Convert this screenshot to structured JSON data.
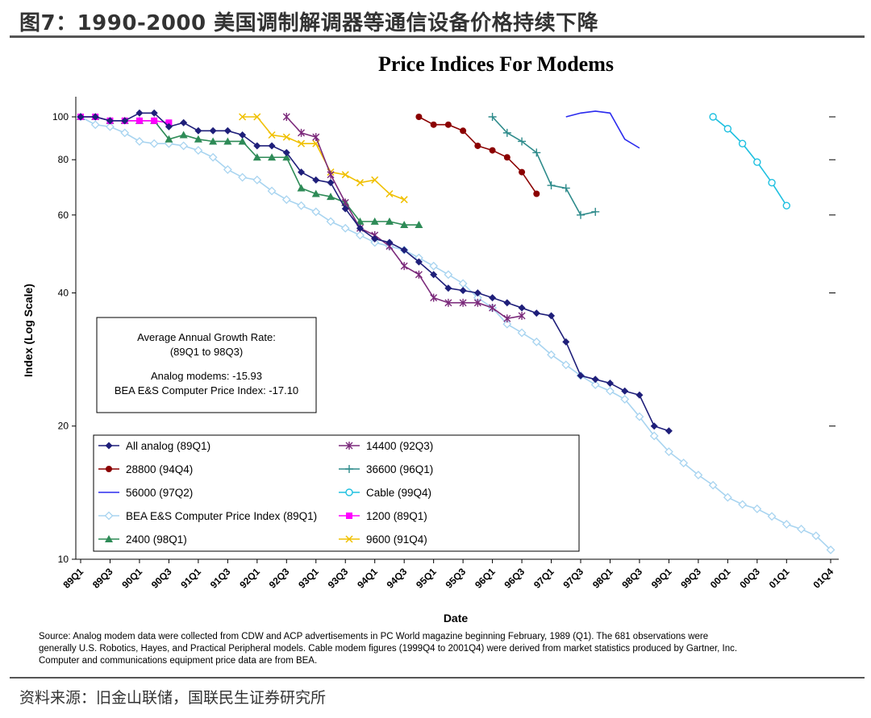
{
  "figure_title": "图7：1990-2000 美国调制解调器等通信设备价格持续下降",
  "footer_source": "资料来源：旧金山联储，国联民生证券研究所",
  "source_note": [
    "Source: Analog modem data were collected from CDW and ACP advertisements in PC World magazine beginning February, 1989 (Q1).  The 681 observations were",
    "generally U.S. Robotics, Hayes, and Practical Peripheral models.  Cable modem figures (1999Q4 to 2001Q4) were derived from market statistics produced by Gartner, Inc.",
    "Computer and communications equipment price data are from BEA."
  ],
  "growth_box": {
    "line1": "Average Annual Growth Rate:",
    "line2": "(89Q1 to 98Q3)",
    "line3": "Analog modems:  -15.93",
    "line4": "BEA E&S Computer Price Index:  -17.10"
  },
  "chart_data": {
    "type": "line",
    "title": "Price Indices For Modems",
    "xlabel": "Date",
    "ylabel": "Index (Log Scale)",
    "y_scale": "log",
    "ylim": [
      10,
      107
    ],
    "y_ticks": [
      10,
      20,
      40,
      60,
      80,
      100
    ],
    "x_ticks": [
      "89Q1",
      "89Q3",
      "90Q1",
      "90Q3",
      "91Q1",
      "91Q3",
      "92Q1",
      "92Q3",
      "93Q1",
      "93Q3",
      "94Q1",
      "94Q3",
      "95Q1",
      "95Q3",
      "96Q1",
      "96Q3",
      "97Q1",
      "97Q3",
      "98Q1",
      "98Q3",
      "99Q1",
      "99Q3",
      "00Q1",
      "00Q3",
      "01Q1",
      "01Q4"
    ],
    "x_tick_index": [
      0,
      2,
      4,
      6,
      8,
      10,
      12,
      14,
      16,
      18,
      20,
      22,
      24,
      26,
      28,
      30,
      32,
      34,
      36,
      38,
      40,
      42,
      44,
      46,
      48,
      51
    ],
    "x_count": 52,
    "series": [
      {
        "name": "All analog (89Q1)",
        "color": "#1f1f7a",
        "marker": "diamond",
        "start": 0,
        "values": [
          100,
          100,
          98,
          98,
          102,
          102,
          95,
          97,
          93,
          93,
          93,
          91,
          86,
          86,
          83,
          75,
          72,
          71,
          62,
          56,
          53,
          52,
          50,
          47,
          44,
          41,
          40.5,
          40,
          39,
          38,
          37,
          36,
          35.5,
          31,
          26,
          25.5,
          25,
          24,
          23.5,
          20,
          19.5
        ]
      },
      {
        "name": "14400 (92Q3)",
        "color": "#7b2a7b",
        "marker": "star",
        "start": 14,
        "values": [
          100,
          92,
          90,
          74,
          64,
          56,
          54,
          51,
          46,
          44,
          39,
          38,
          38,
          38,
          37,
          35,
          35.5
        ]
      },
      {
        "name": "28800 (94Q4)",
        "color": "#8b0000",
        "marker": "circle",
        "start": 23,
        "values": [
          100,
          96,
          96,
          93,
          86,
          84,
          81,
          75,
          67
        ]
      },
      {
        "name": "36600 (96Q1)",
        "color": "#2e8b8b",
        "marker": "plus",
        "start": 28,
        "values": [
          100,
          92,
          88,
          83,
          70,
          69,
          60,
          61
        ]
      },
      {
        "name": "56000 (97Q2)",
        "color": "#2a2aee",
        "marker": "none",
        "start": 33,
        "values": [
          100,
          102,
          103,
          102,
          89,
          85
        ]
      },
      {
        "name": "Cable (99Q4)",
        "color": "#1fc0e0",
        "marker": "circle-open",
        "start": 43,
        "values": [
          100,
          94,
          87,
          79,
          71,
          63
        ]
      },
      {
        "name": "BEA E&S Computer Price Index (89Q1)",
        "color": "#a8d4f0",
        "marker": "diamond-open",
        "start": 0,
        "values": [
          100,
          96,
          95,
          92,
          88,
          87,
          87,
          86,
          84,
          81,
          76,
          73,
          72,
          68,
          65,
          63,
          61,
          58,
          56,
          54,
          52,
          51,
          50,
          48,
          46,
          44,
          42,
          39,
          37,
          34,
          32.5,
          31,
          29,
          27.5,
          26,
          24.8,
          24,
          23,
          21,
          19,
          17.5,
          16.5,
          15.5,
          14.7,
          13.8,
          13.3,
          13,
          12.5,
          12,
          11.7,
          11.3,
          10.5
        ]
      },
      {
        "name": "1200 (89Q1)",
        "color": "#ff00ff",
        "marker": "square",
        "start": 0,
        "values": [
          100,
          100,
          98,
          98,
          98,
          98,
          97
        ]
      },
      {
        "name": "2400 (98Q1)",
        "color": "#2e8b57",
        "marker": "triangle",
        "start": 0,
        "values": [
          100,
          100,
          98,
          98,
          98,
          98,
          89,
          91,
          89,
          88,
          88,
          88,
          81,
          81,
          81,
          69,
          67,
          66,
          64,
          58,
          58,
          58,
          57,
          57
        ]
      },
      {
        "name": "9600 (91Q4)",
        "color": "#f0c000",
        "marker": "x",
        "start": 11,
        "values": [
          100,
          100,
          91,
          90,
          87,
          87,
          75,
          74,
          71,
          72,
          67,
          65
        ]
      }
    ],
    "legend": [
      "All analog (89Q1)",
      "14400 (92Q3)",
      "28800 (94Q4)",
      "36600 (96Q1)",
      "56000 (97Q2)",
      "Cable (99Q4)",
      "BEA E&S Computer Price Index (89Q1)",
      "1200 (89Q1)",
      "2400 (98Q1)",
      "9600 (91Q4)"
    ],
    "legend_position": "bottom-left"
  }
}
